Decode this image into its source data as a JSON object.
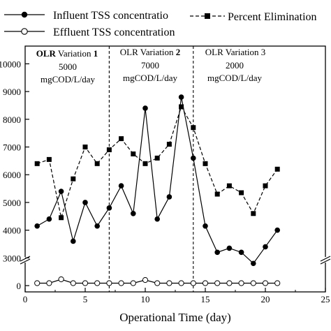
{
  "chart_data": {
    "type": "line",
    "xlabel": "Operational Time (day)",
    "ylabel": "",
    "xlim": [
      0,
      25
    ],
    "x_ticks": [
      0,
      5,
      10,
      15,
      20,
      25
    ],
    "x_tick_labels": [
      "0",
      "5",
      "10",
      "15",
      "20",
      "25"
    ],
    "y_ticks": [
      0,
      3000,
      4000,
      5000,
      6000,
      7000,
      8000,
      9000,
      10000
    ],
    "y_tick_labels": [
      "0",
      "3000",
      "4000",
      "5000",
      "6000",
      "7000",
      "8000",
      "9000",
      "10000"
    ],
    "y_axis_break": true,
    "grid": false,
    "legend_placement": "top",
    "series": [
      {
        "name": "Influent TSS concentration",
        "marker": "filled-circle",
        "line": "solid",
        "x": [
          1,
          2,
          3,
          4,
          5,
          6,
          7,
          8,
          9,
          10,
          11,
          12,
          13,
          14,
          15,
          16,
          17,
          18,
          19,
          20,
          21
        ],
        "values": [
          4150,
          4400,
          5400,
          3600,
          5000,
          4150,
          4800,
          5600,
          4600,
          8400,
          4400,
          5200,
          8800,
          6600,
          4150,
          3200,
          3350,
          3200,
          2800,
          3400,
          4000
        ]
      },
      {
        "name": "Effluent TSS concentration",
        "marker": "open-circle",
        "line": "solid",
        "x": [
          1,
          2,
          3,
          4,
          5,
          6,
          7,
          8,
          9,
          10,
          11,
          12,
          13,
          14,
          15,
          16,
          17,
          18,
          19,
          20,
          21
        ],
        "values": [
          70,
          70,
          180,
          70,
          70,
          70,
          70,
          70,
          70,
          160,
          70,
          70,
          70,
          70,
          70,
          70,
          70,
          70,
          70,
          70,
          70
        ]
      },
      {
        "name": "Percent Elimination",
        "marker": "filled-square",
        "line": "dashed",
        "x": [
          1,
          2,
          3,
          4,
          5,
          6,
          7,
          8,
          9,
          10,
          11,
          12,
          13,
          14,
          15,
          16,
          17,
          18,
          19,
          20,
          21
        ],
        "values": [
          6400,
          6550,
          4450,
          5850,
          7000,
          6400,
          6900,
          7300,
          6750,
          6400,
          6600,
          7100,
          8450,
          7700,
          6400,
          5300,
          5600,
          5350,
          4600,
          5600,
          6200
        ]
      }
    ],
    "phase_separators_x": [
      7,
      14
    ],
    "annotations": [
      {
        "lines": [
          "OLR Variation 1",
          "5000",
          "mgCOD/L/day"
        ],
        "bold_part": "1"
      },
      {
        "lines": [
          "OLR Variation 2",
          "7000",
          "mgCOD/L/day"
        ],
        "bold_part": "2"
      },
      {
        "lines": [
          "OLR Variation 3",
          "2000",
          "mgCOD/L/day"
        ],
        "bold_part": ""
      }
    ]
  },
  "legend": {
    "influent": "Influent TSS concentratio",
    "effluent": "Effluent TSS concentration",
    "percent": "Percent Elimination"
  }
}
